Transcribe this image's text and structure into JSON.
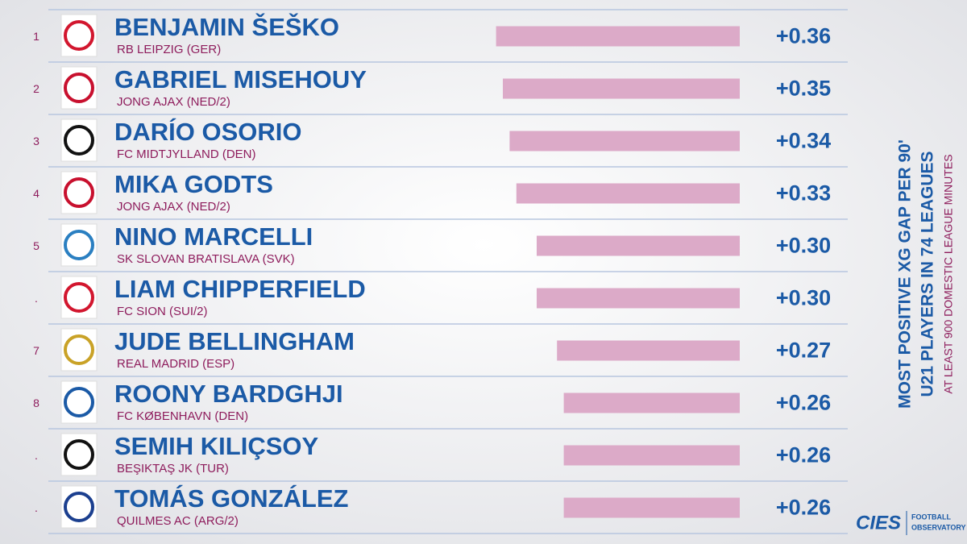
{
  "chart_data": {
    "type": "bar",
    "orientation": "horizontal",
    "title": "MOST POSITIVE XG GAP PER 90'",
    "subtitle": "U21 PLAYERS IN 74 LEAGUES",
    "note": "AT LEAST 900 DOMESTIC LEAGUE MINUTES",
    "ranks": [
      "1",
      "2",
      "3",
      "4",
      "5",
      ".",
      "7",
      "8",
      ".",
      "."
    ],
    "categories": [
      "BENJAMIN ŠEŠKO",
      "GABRIEL MISEHOUY",
      "DARÍO OSORIO",
      "MIKA GODTS",
      "NINO MARCELLI",
      "LIAM CHIPPERFIELD",
      "JUDE BELLINGHAM",
      "ROONY BARDGHJI",
      "SEMIH KILIÇSOY",
      "TOMÁS GONZÁLEZ"
    ],
    "clubs": [
      "RB LEIPZIG (GER)",
      "JONG AJAX (NED/2)",
      "FC MIDTJYLLAND (DEN)",
      "JONG AJAX (NED/2)",
      "SK SLOVAN BRATISLAVA (SVK)",
      "FC SION (SUI/2)",
      "REAL MADRID (ESP)",
      "FC KØBENHAVN (DEN)",
      "BEŞIKTAŞ JK (TUR)",
      "QUILMES AC (ARG/2)"
    ],
    "values": [
      0.36,
      0.35,
      0.34,
      0.33,
      0.3,
      0.3,
      0.27,
      0.26,
      0.26,
      0.26
    ],
    "value_labels": [
      "+0.36",
      "+0.35",
      "+0.34",
      "+0.33",
      "+0.30",
      "+0.30",
      "+0.27",
      "+0.26",
      "+0.26",
      "+0.26"
    ],
    "color": "#dcaac8"
  },
  "branding": {
    "name": "CIES",
    "tagline": [
      "FOOTBALL",
      "OBSERVATORY"
    ]
  }
}
